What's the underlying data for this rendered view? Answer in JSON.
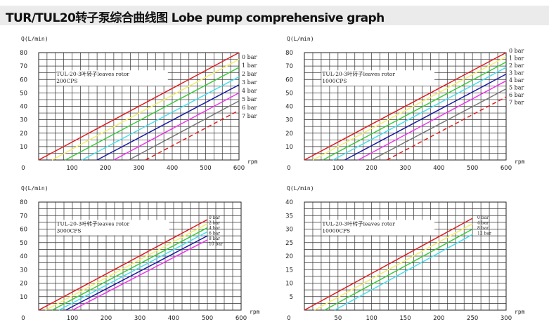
{
  "header": {
    "title": "TUR/TUL20转子泵综合曲线图 Lobe pump comprehensive graph"
  },
  "colors": {
    "grid": "#333333",
    "series": [
      "#e31b1b",
      "#f4f06a",
      "#39cc39",
      "#45e0ee",
      "#1a1aa8",
      "#ee33ee",
      "#777777",
      "#e31b1b"
    ],
    "dashed_last": true
  },
  "chart_data": [
    {
      "type": "line",
      "ylabel": "Q(L/min)",
      "xlabel": "rpm",
      "xlim": [
        0,
        600
      ],
      "ylim": [
        0,
        80
      ],
      "xticks": [
        "0",
        "100",
        "200",
        "300",
        "400",
        "500",
        "600"
      ],
      "yticks": [
        "0",
        "10",
        "20",
        "30",
        "40",
        "50",
        "60",
        "70",
        "80"
      ],
      "grid": true,
      "annotation": [
        "TUL-20-3叶转子leaves rotor",
        "200CPS"
      ],
      "series": [
        {
          "name": "0 bar",
          "x": [
            0,
            600
          ],
          "y": [
            0,
            80
          ]
        },
        {
          "name": "1 bar",
          "x": [
            40,
            600
          ],
          "y": [
            0,
            75
          ]
        },
        {
          "name": "2 bar",
          "x": [
            80,
            600
          ],
          "y": [
            0,
            69
          ]
        },
        {
          "name": "3 bar",
          "x": [
            130,
            600
          ],
          "y": [
            0,
            62
          ]
        },
        {
          "name": "4 bar",
          "x": [
            175,
            600
          ],
          "y": [
            0,
            56
          ]
        },
        {
          "name": "5 bar",
          "x": [
            225,
            600
          ],
          "y": [
            0,
            50
          ]
        },
        {
          "name": "6 bar",
          "x": [
            270,
            600
          ],
          "y": [
            0,
            44
          ]
        },
        {
          "name": "7 bar",
          "x": [
            320,
            600
          ],
          "y": [
            0,
            37
          ]
        }
      ]
    },
    {
      "type": "line",
      "ylabel": "Q(L/min)",
      "xlabel": "rpm",
      "xlim": [
        0,
        600
      ],
      "ylim": [
        0,
        80
      ],
      "xticks": [
        "0",
        "100",
        "200",
        "300",
        "400",
        "500",
        "600"
      ],
      "yticks": [
        "0",
        "10",
        "20",
        "30",
        "40",
        "50",
        "60",
        "70",
        "80"
      ],
      "grid": true,
      "annotation": [
        "TUL-20-3叶转子leaves rotor",
        "1000CPS"
      ],
      "series": [
        {
          "name": "0 bar",
          "x": [
            0,
            600
          ],
          "y": [
            0,
            80
          ]
        },
        {
          "name": "1 bar",
          "x": [
            25,
            600
          ],
          "y": [
            0,
            77
          ]
        },
        {
          "name": "2 bar",
          "x": [
            55,
            600
          ],
          "y": [
            0,
            73
          ]
        },
        {
          "name": "3 bar",
          "x": [
            85,
            600
          ],
          "y": [
            0,
            69
          ]
        },
        {
          "name": "4 bar",
          "x": [
            120,
            600
          ],
          "y": [
            0,
            64
          ]
        },
        {
          "name": "5 bar",
          "x": [
            160,
            600
          ],
          "y": [
            0,
            59
          ]
        },
        {
          "name": "6 bar",
          "x": [
            200,
            600
          ],
          "y": [
            0,
            53
          ]
        },
        {
          "name": "7 bar",
          "x": [
            245,
            600
          ],
          "y": [
            0,
            47
          ]
        }
      ]
    },
    {
      "type": "line",
      "ylabel": "Q(L/min)",
      "xlabel": "rpm",
      "xlim": [
        0,
        600
      ],
      "ylim": [
        0,
        80
      ],
      "xticks": [
        "0",
        "100",
        "200",
        "300",
        "400",
        "500",
        "600"
      ],
      "yticks": [
        "0",
        "10",
        "20",
        "30",
        "40",
        "50",
        "60",
        "70",
        "80"
      ],
      "grid": true,
      "annotation": [
        "TUL-20-3叶转子leaves rotor",
        "3000CPS"
      ],
      "series": [
        {
          "name": "0 bar",
          "x": [
            0,
            500
          ],
          "y": [
            0,
            67
          ]
        },
        {
          "name": "2 bar",
          "x": [
            20,
            500
          ],
          "y": [
            0,
            64
          ]
        },
        {
          "name": "4 bar",
          "x": [
            40,
            500
          ],
          "y": [
            0,
            61
          ]
        },
        {
          "name": "6 bar",
          "x": [
            60,
            500
          ],
          "y": [
            0,
            58
          ]
        },
        {
          "name": "8 bar",
          "x": [
            80,
            500
          ],
          "y": [
            0,
            55
          ]
        },
        {
          "name": "10 bar",
          "x": [
            100,
            500
          ],
          "y": [
            0,
            52
          ]
        }
      ]
    },
    {
      "type": "line",
      "ylabel": "Q(L/min)",
      "xlabel": "rpm",
      "xlim": [
        0,
        300
      ],
      "ylim": [
        0,
        40
      ],
      "xticks": [
        "0",
        "50",
        "100",
        "150",
        "200",
        "250",
        "300"
      ],
      "yticks": [
        "0",
        "5",
        "10",
        "15",
        "20",
        "25",
        "30",
        "35",
        "40"
      ],
      "grid": true,
      "annotation": [
        "TUL-20-3叶转子leaves rotor",
        "10000CPS"
      ],
      "series": [
        {
          "name": "0 bar",
          "x": [
            0,
            250
          ],
          "y": [
            0,
            34
          ]
        },
        {
          "name": "4 bar",
          "x": [
            15,
            250
          ],
          "y": [
            0,
            32
          ]
        },
        {
          "name": "8 bar",
          "x": [
            30,
            250
          ],
          "y": [
            0,
            30
          ]
        },
        {
          "name": "12 bar",
          "x": [
            45,
            250
          ],
          "y": [
            0,
            28
          ]
        }
      ]
    }
  ]
}
